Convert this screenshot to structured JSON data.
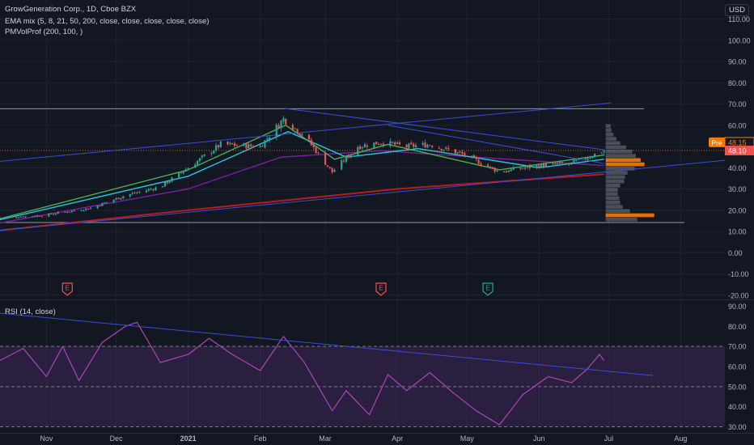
{
  "header": {
    "title": "GrowGeneration Corp., 1D, Cboe BZX",
    "ema_label": "EMA mix (5, 8, 21, 50, 200, close, close, close, close, close)",
    "pmvol_label": "PMVolProf (200, 100, )",
    "rsi_label": "RSI (14, close)",
    "currency": "USD"
  },
  "colors": {
    "background": "#131722",
    "bull": "#26a69a",
    "bear": "#ef5350",
    "trendline": "#3a4fd6",
    "ema200": "#b71c1c",
    "ema50": "#7b1fa2",
    "ema21": "#26c6da",
    "ema8": "#4caf50",
    "rsi_line": "#ab47bc",
    "rsi_band": "#4a2a63",
    "volume_profile": "#787b86",
    "poc": "#f57c00",
    "price_tag": "#f57c00"
  },
  "price_tags": {
    "pre": "Pre",
    "pre_value": "48.15",
    "last_value": "48.10"
  },
  "earnings_markers": [
    {
      "label": "E",
      "date": "2020-11-10",
      "color": "#ef5350"
    },
    {
      "label": "E",
      "date": "2021-03-25",
      "color": "#ef5350"
    },
    {
      "label": "E",
      "date": "2021-05-10",
      "color": "#26a69a"
    }
  ],
  "chart_data": [
    {
      "type": "candlestick",
      "title": "GrowGeneration Corp., 1D, Cboe BZX",
      "y_ticks": [
        "110.00",
        "100.00",
        "90.00",
        "80.00",
        "70.00",
        "60.00",
        "50.00",
        "40.00",
        "30.00",
        "20.00",
        "10.00",
        "0.00",
        "-10.00",
        "-20.00"
      ],
      "ylim": [
        -22,
        119
      ],
      "x_ticks": [
        "Nov",
        "Dec",
        "2021",
        "Feb",
        "Mar",
        "Apr",
        "May",
        "Jun",
        "Jul",
        "Aug"
      ],
      "x_tick_dates": [
        "2020-11-01",
        "2020-12-01",
        "2021-01-01",
        "2021-02-01",
        "2021-03-01",
        "2021-04-01",
        "2021-05-01",
        "2021-06-01",
        "2021-07-01",
        "2021-08-01"
      ],
      "xlim": [
        "2020-10-12",
        "2021-08-20"
      ],
      "close_path": [
        {
          "date": "2020-10-12",
          "close": 16.5
        },
        {
          "date": "2020-10-30",
          "close": 17.5
        },
        {
          "date": "2020-11-20",
          "close": 21.0
        },
        {
          "date": "2020-12-05",
          "close": 27.0
        },
        {
          "date": "2020-12-20",
          "close": 31.0
        },
        {
          "date": "2021-01-01",
          "close": 40.0
        },
        {
          "date": "2021-01-15",
          "close": 51.0
        },
        {
          "date": "2021-02-01",
          "close": 50.0
        },
        {
          "date": "2021-02-11",
          "close": 63.0
        },
        {
          "date": "2021-02-20",
          "close": 55.0
        },
        {
          "date": "2021-03-04",
          "close": 38.0
        },
        {
          "date": "2021-03-15",
          "close": 50.0
        },
        {
          "date": "2021-03-25",
          "close": 52.0
        },
        {
          "date": "2021-04-05",
          "close": 50.0
        },
        {
          "date": "2021-04-15",
          "close": 51.0
        },
        {
          "date": "2021-04-30",
          "close": 46.0
        },
        {
          "date": "2021-05-15",
          "close": 38.0
        },
        {
          "date": "2021-06-01",
          "close": 41.0
        },
        {
          "date": "2021-06-15",
          "close": 42.0
        },
        {
          "date": "2021-06-29",
          "close": 48.1
        }
      ],
      "ema_paths": [
        {
          "name": "EMA 200",
          "color": "#b71c1c",
          "points": [
            [
              "2020-10-12",
              10.5
            ],
            [
              "2021-01-01",
              20.0
            ],
            [
              "2021-04-01",
              30.0
            ],
            [
              "2021-06-29",
              37.0
            ]
          ]
        },
        {
          "name": "EMA 50",
          "color": "#7b1fa2",
          "points": [
            [
              "2020-10-12",
              14.0
            ],
            [
              "2021-01-01",
              30.0
            ],
            [
              "2021-02-10",
              45.0
            ],
            [
              "2021-03-25",
              48.0
            ],
            [
              "2021-06-29",
              41.0
            ]
          ]
        },
        {
          "name": "EMA 21",
          "color": "#26c6da",
          "points": [
            [
              "2020-10-12",
              15.5
            ],
            [
              "2021-01-01",
              36.0
            ],
            [
              "2021-02-13",
              57.0
            ],
            [
              "2021-03-10",
              45.0
            ],
            [
              "2021-04-10",
              49.0
            ],
            [
              "2021-06-01",
              40.0
            ],
            [
              "2021-06-29",
              44.0
            ]
          ]
        },
        {
          "name": "EMA 8",
          "color": "#4caf50",
          "points": [
            [
              "2020-10-12",
              16.0
            ],
            [
              "2021-01-01",
              39.0
            ],
            [
              "2021-02-12",
              60.0
            ],
            [
              "2021-03-05",
              44.0
            ],
            [
              "2021-03-28",
              51.0
            ],
            [
              "2021-05-15",
              39.0
            ],
            [
              "2021-06-29",
              46.0
            ]
          ]
        }
      ],
      "horizontal_levels": [
        67.8,
        14.2,
        48.1
      ],
      "trendlines": [
        {
          "from": [
            "2020-10-12",
            43.0
          ],
          "to": [
            "2021-07-02",
            70.5
          ]
        },
        {
          "from": [
            "2020-10-12",
            10.5
          ],
          "to": [
            "2021-08-20",
            43.5
          ]
        },
        {
          "from": [
            "2021-02-11",
            68.0
          ],
          "to": [
            "2021-06-29",
            48.5
          ]
        },
        {
          "from": [
            "2021-03-28",
            60.0
          ],
          "to": [
            "2021-06-29",
            42.0
          ]
        }
      ]
    },
    {
      "type": "line",
      "title": "RSI (14, close)",
      "y_ticks": [
        "90.00",
        "80.00",
        "70.00",
        "60.00",
        "50.00",
        "40.00",
        "30.00"
      ],
      "ylim": [
        27,
        93
      ],
      "bands": [
        70,
        50,
        30
      ],
      "rsi_path": [
        [
          "2020-10-12",
          63
        ],
        [
          "2020-10-22",
          69
        ],
        [
          "2020-11-01",
          55
        ],
        [
          "2020-11-08",
          70
        ],
        [
          "2020-11-15",
          53
        ],
        [
          "2020-11-25",
          72
        ],
        [
          "2020-12-05",
          80
        ],
        [
          "2020-12-10",
          82
        ],
        [
          "2020-12-20",
          62
        ],
        [
          "2021-01-01",
          66
        ],
        [
          "2021-01-10",
          74
        ],
        [
          "2021-01-20",
          66
        ],
        [
          "2021-02-01",
          58
        ],
        [
          "2021-02-11",
          75
        ],
        [
          "2021-02-20",
          62
        ],
        [
          "2021-03-04",
          38
        ],
        [
          "2021-03-10",
          48
        ],
        [
          "2021-03-20",
          36
        ],
        [
          "2021-03-28",
          56
        ],
        [
          "2021-04-05",
          48
        ],
        [
          "2021-04-15",
          57
        ],
        [
          "2021-04-25",
          47
        ],
        [
          "2021-05-05",
          38
        ],
        [
          "2021-05-15",
          31
        ],
        [
          "2021-05-25",
          46
        ],
        [
          "2021-06-05",
          55
        ],
        [
          "2021-06-15",
          52
        ],
        [
          "2021-06-22",
          59
        ],
        [
          "2021-06-27",
          66
        ],
        [
          "2021-06-29",
          63
        ]
      ],
      "trendline": {
        "from": [
          "2020-10-12",
          86.5
        ],
        "to": [
          "2021-07-20",
          55.5
        ]
      }
    }
  ],
  "volume_profile": {
    "bins": [
      {
        "price": 59.5,
        "volume": 0.1
      },
      {
        "price": 57.5,
        "volume": 0.12
      },
      {
        "price": 55.5,
        "volume": 0.16
      },
      {
        "price": 53.5,
        "volume": 0.22
      },
      {
        "price": 51.5,
        "volume": 0.3
      },
      {
        "price": 49.5,
        "volume": 0.42
      },
      {
        "price": 47.5,
        "volume": 0.55
      },
      {
        "price": 45.5,
        "volume": 0.62
      },
      {
        "price": 43.5,
        "volume": 0.72
      },
      {
        "price": 41.5,
        "volume": 0.8
      },
      {
        "price": 39.5,
        "volume": 0.6
      },
      {
        "price": 37.5,
        "volume": 0.45
      },
      {
        "price": 35.5,
        "volume": 0.4
      },
      {
        "price": 33.5,
        "volume": 0.38
      },
      {
        "price": 31.5,
        "volume": 0.3
      },
      {
        "price": 29.5,
        "volume": 0.25
      },
      {
        "price": 27.5,
        "volume": 0.25
      },
      {
        "price": 25.5,
        "volume": 0.28
      },
      {
        "price": 23.5,
        "volume": 0.3
      },
      {
        "price": 21.5,
        "volume": 0.35
      },
      {
        "price": 19.5,
        "volume": 0.5
      },
      {
        "price": 17.5,
        "volume": 1.0
      },
      {
        "price": 15.5,
        "volume": 0.65
      }
    ],
    "poc_prices": [
      17.5,
      42.5
    ]
  }
}
